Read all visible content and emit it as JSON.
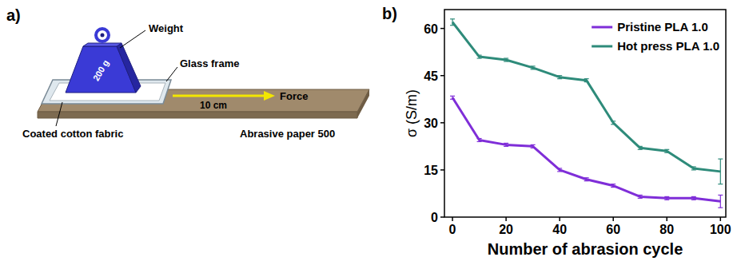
{
  "diagram": {
    "letter": "a)",
    "weight_label": "Weight",
    "weight_mass": "200 g",
    "frame_label": "Glass frame",
    "fabric_label": "Coated cotton fabric",
    "distance_label": "10 cm",
    "force_label": "Force",
    "paper_label": "Abrasive paper 500"
  },
  "chart_data": {
    "type": "line",
    "panel_label": "b)",
    "x_label": "Number of abrasion cycle",
    "y_label": "σ (S/m)",
    "x": [
      0,
      10,
      20,
      30,
      40,
      50,
      60,
      70,
      80,
      90,
      100
    ],
    "xlim": [
      -3,
      102
    ],
    "xticks": [
      0,
      20,
      40,
      60,
      80,
      100
    ],
    "ylim": [
      0,
      66
    ],
    "yticks": [
      0,
      15,
      30,
      45,
      60
    ],
    "legend": "upper right",
    "series": [
      {
        "name": "Pristine PLA 1.0",
        "color": "#7f2ed8",
        "values": [
          38,
          24.5,
          23,
          22.5,
          15,
          12,
          10,
          6.5,
          6,
          6,
          5
        ],
        "errors": [
          0.5,
          0.5,
          0.5,
          0.5,
          0.5,
          0.5,
          0.5,
          0.5,
          0.5,
          0.5,
          2
        ]
      },
      {
        "name": "Hot press PLA 1.0",
        "color": "#2e8b7a",
        "values": [
          62,
          51,
          50,
          47.5,
          44.5,
          43.5,
          30,
          22,
          21,
          15.5,
          14.5
        ],
        "errors": [
          1,
          0.5,
          0.5,
          0.5,
          0.5,
          0.5,
          0.5,
          0.5,
          0.5,
          0.5,
          4
        ]
      }
    ]
  }
}
